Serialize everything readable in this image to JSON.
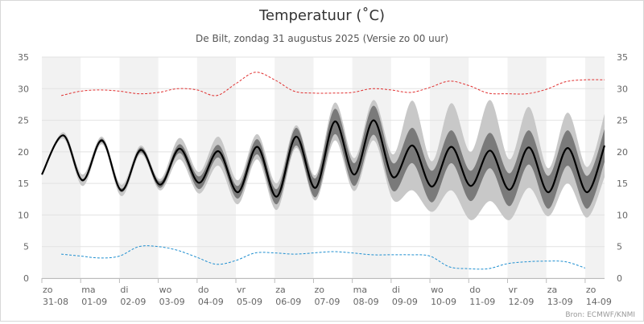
{
  "chart_data": {
    "type": "line",
    "title": "Temperatuur (˚C)",
    "subtitle": "De Bilt, zondag 31 augustus 2025 (Versie zo 00 uur)",
    "source": "Bron: ECMWF/KNMI",
    "ylim": [
      0,
      35
    ],
    "yticks": [
      0,
      5,
      10,
      15,
      20,
      25,
      30,
      35
    ],
    "xlim": [
      0,
      14.5
    ],
    "grid": true,
    "date_ticks": [
      {
        "day": "zo",
        "date": "31-08"
      },
      {
        "day": "ma",
        "date": "01-09"
      },
      {
        "day": "di",
        "date": "02-09"
      },
      {
        "day": "wo",
        "date": "03-09"
      },
      {
        "day": "do",
        "date": "04-09"
      },
      {
        "day": "vr",
        "date": "05-09"
      },
      {
        "day": "za",
        "date": "06-09"
      },
      {
        "day": "zo",
        "date": "07-09"
      },
      {
        "day": "ma",
        "date": "08-09"
      },
      {
        "day": "di",
        "date": "09-09"
      },
      {
        "day": "wo",
        "date": "10-09"
      },
      {
        "day": "do",
        "date": "11-09"
      },
      {
        "day": "vr",
        "date": "12-09"
      },
      {
        "day": "za",
        "date": "13-09"
      },
      {
        "day": "zo",
        "date": "14-09"
      }
    ],
    "daily_extremes": {
      "x": [
        0.0,
        0.55,
        1.05,
        1.55,
        2.05,
        2.55,
        3.05,
        3.55,
        4.05,
        4.55,
        5.05,
        5.55,
        6.05,
        6.55,
        7.05,
        7.55,
        8.05,
        8.55,
        9.05,
        9.55,
        10.05,
        10.55,
        11.05,
        11.55,
        12.05,
        12.55,
        13.05,
        13.55,
        14.05,
        14.5
      ],
      "median": [
        16.4,
        22.6,
        15.5,
        21.8,
        13.9,
        20.3,
        14.8,
        20.5,
        15.1,
        20.1,
        13.6,
        20.8,
        12.9,
        22.4,
        14.3,
        24.8,
        16.4,
        25.0,
        16.0,
        21.0,
        14.5,
        20.8,
        14.6,
        20.2,
        14.0,
        20.7,
        13.6,
        20.6,
        13.6,
        21.0
      ],
      "p25_p75_halfwidth": [
        0.0,
        0.1,
        0.2,
        0.3,
        0.3,
        0.4,
        0.5,
        0.7,
        1.0,
        1.0,
        1.0,
        1.2,
        1.2,
        1.4,
        1.5,
        2.0,
        1.8,
        2.3,
        2.2,
        2.8,
        2.5,
        2.6,
        2.4,
        2.8,
        2.6,
        2.7,
        2.6,
        2.8,
        2.6,
        2.6
      ],
      "p10_p90_halfwidth": [
        0.0,
        0.5,
        0.9,
        0.6,
        0.9,
        0.7,
        0.9,
        1.7,
        1.7,
        2.3,
        1.9,
        2.0,
        2.1,
        1.8,
        2.0,
        3.0,
        2.6,
        3.2,
        3.6,
        7.1,
        4.0,
        6.9,
        5.4,
        8.0,
        4.8,
        6.4,
        3.8,
        5.6,
        4.0,
        5.0
      ]
    },
    "series": [
      {
        "name": "max",
        "color": "#e03030",
        "x": [
          0.5,
          1.0,
          1.5,
          2.0,
          2.5,
          3.0,
          3.5,
          4.0,
          4.5,
          5.0,
          5.5,
          6.0,
          6.5,
          7.0,
          7.5,
          8.0,
          8.5,
          9.0,
          9.5,
          10.0,
          10.5,
          11.0,
          11.5,
          12.0,
          12.5,
          13.0,
          13.5,
          14.0,
          14.5
        ],
        "y": [
          28.9,
          29.6,
          29.8,
          29.6,
          29.2,
          29.4,
          30.0,
          29.8,
          28.9,
          30.8,
          32.6,
          31.4,
          29.6,
          29.3,
          29.3,
          29.4,
          30.0,
          29.8,
          29.4,
          30.2,
          31.2,
          30.5,
          29.3,
          29.2,
          29.2,
          29.9,
          31.1,
          31.4,
          31.4
        ]
      },
      {
        "name": "min",
        "color": "#1f8fd0",
        "x": [
          0.5,
          1.0,
          1.5,
          2.0,
          2.5,
          3.0,
          3.5,
          4.0,
          4.5,
          5.0,
          5.5,
          6.0,
          6.5,
          7.0,
          7.5,
          8.0,
          8.5,
          9.0,
          9.5,
          10.0,
          10.5,
          11.0,
          11.5,
          12.0,
          12.5,
          13.0,
          13.5,
          14.0
        ],
        "y": [
          3.8,
          3.5,
          3.2,
          3.5,
          5.0,
          5.0,
          4.4,
          3.3,
          2.2,
          2.8,
          4.0,
          4.0,
          3.8,
          4.0,
          4.2,
          4.0,
          3.7,
          3.7,
          3.7,
          3.5,
          1.8,
          1.5,
          1.5,
          2.3,
          2.6,
          2.7,
          2.6,
          1.6
        ]
      }
    ]
  }
}
